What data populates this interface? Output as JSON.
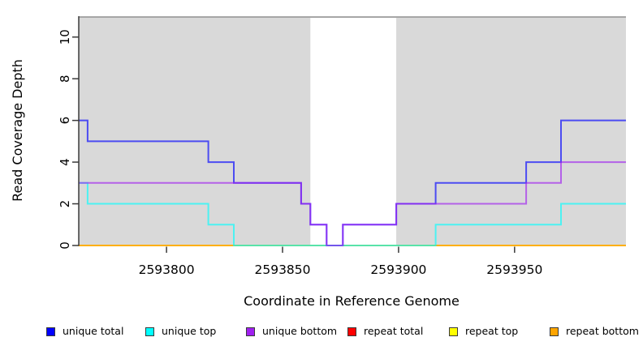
{
  "chart_data": {
    "type": "line",
    "subtype": "step-coverage",
    "title": "",
    "xlabel": "Coordinate in Reference Genome",
    "ylabel": "Read Coverage Depth",
    "xlim": [
      2593762,
      2593998
    ],
    "ylim": [
      0,
      11
    ],
    "x_ticks": [
      2593800,
      2593850,
      2593900,
      2593950
    ],
    "y_ticks": [
      0,
      2,
      4,
      6,
      8,
      10
    ],
    "grid": false,
    "legend_position": "bottom",
    "panel_background": "#d9d9d9",
    "unshaded_band": {
      "x_start": 2593862,
      "x_end": 2593899,
      "color": "#ffffff"
    },
    "panel_top_line_color": "#a6a6a6",
    "axis_color": "#3a3a3a",
    "line_alpha": 0.65,
    "line_width": 2,
    "draw_order": [
      "repeat total",
      "repeat top",
      "repeat bottom",
      "unique total",
      "unique top",
      "unique bottom"
    ],
    "series": [
      {
        "name": "unique total",
        "color": "#0000ff",
        "breakpoints": [
          [
            2593762,
            6
          ],
          [
            2593766,
            5
          ],
          [
            2593818,
            4
          ],
          [
            2593829,
            3
          ],
          [
            2593858,
            2
          ],
          [
            2593862,
            1
          ],
          [
            2593869,
            0
          ],
          [
            2593876,
            1
          ],
          [
            2593899,
            2
          ],
          [
            2593916,
            3
          ],
          [
            2593955,
            4
          ],
          [
            2593970,
            6
          ]
        ]
      },
      {
        "name": "unique top",
        "color": "#00ffff",
        "breakpoints": [
          [
            2593762,
            3
          ],
          [
            2593766,
            2
          ],
          [
            2593818,
            1
          ],
          [
            2593829,
            0
          ],
          [
            2593916,
            1
          ],
          [
            2593970,
            2
          ]
        ]
      },
      {
        "name": "unique bottom",
        "color": "#a020f0",
        "breakpoints": [
          [
            2593762,
            3
          ],
          [
            2593858,
            2
          ],
          [
            2593862,
            1
          ],
          [
            2593869,
            0
          ],
          [
            2593876,
            1
          ],
          [
            2593899,
            2
          ],
          [
            2593955,
            3
          ],
          [
            2593970,
            4
          ]
        ]
      },
      {
        "name": "repeat total",
        "color": "#ff0000",
        "breakpoints": [
          [
            2593762,
            0
          ]
        ]
      },
      {
        "name": "repeat top",
        "color": "#ffff00",
        "breakpoints": [
          [
            2593762,
            0
          ]
        ]
      },
      {
        "name": "repeat bottom",
        "color": "#ffa500",
        "breakpoints": [
          [
            2593762,
            0
          ]
        ]
      }
    ],
    "legend": [
      {
        "label": "unique total",
        "color": "#0000ff"
      },
      {
        "label": "unique top",
        "color": "#00ffff"
      },
      {
        "label": "unique bottom",
        "color": "#a020f0"
      },
      {
        "label": "repeat total",
        "color": "#ff0000"
      },
      {
        "label": "repeat top",
        "color": "#ffff00"
      },
      {
        "label": "repeat bottom",
        "color": "#ffa500"
      }
    ]
  }
}
